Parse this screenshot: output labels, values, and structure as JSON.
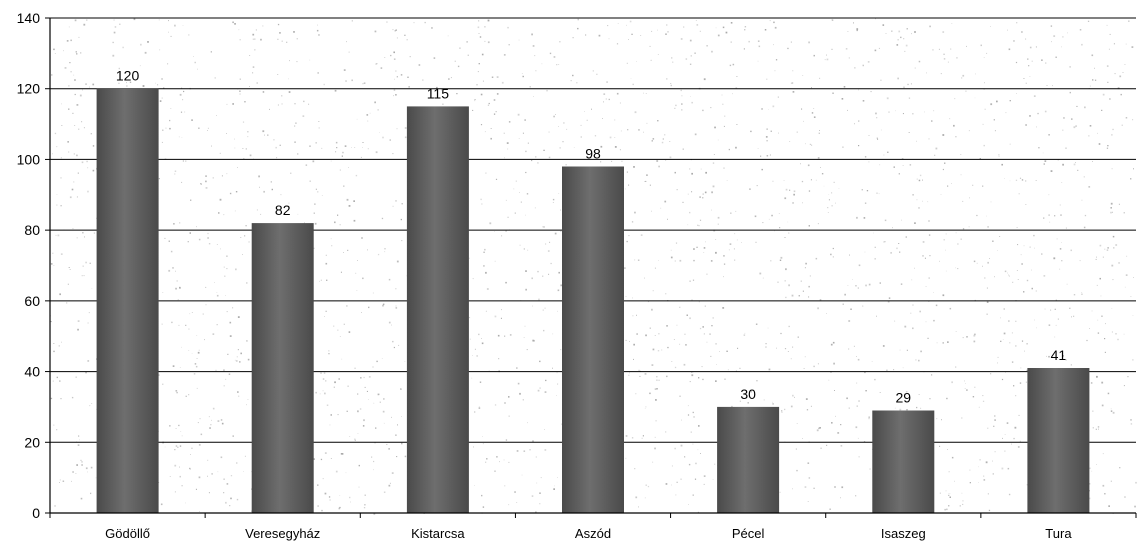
{
  "chart_data": {
    "type": "bar",
    "title": "",
    "xlabel": "",
    "ylabel": "",
    "categories": [
      "Gödöllő",
      "Veresegyház",
      "Kistarcsa",
      "Aszód",
      "Pécel",
      "Isaszeg",
      "Tura"
    ],
    "values": [
      120,
      82,
      115,
      98,
      30,
      29,
      41
    ],
    "data_labels": [
      "120",
      "82",
      "115",
      "98",
      "30",
      "29",
      "41"
    ],
    "ylim": [
      0,
      140
    ],
    "yticks": [
      0,
      20,
      40,
      60,
      80,
      100,
      120,
      140
    ],
    "ytick_labels": [
      "0",
      "20",
      "40",
      "60",
      "80",
      "100",
      "120",
      "140"
    ],
    "grid": true,
    "legend": "none",
    "colors": {
      "bar": "#4a4a4a",
      "bar_highlight": "#6e6e6e",
      "plot_background": "#ffffff",
      "speckle": "#9a9a9a",
      "axis": "#000000"
    }
  }
}
